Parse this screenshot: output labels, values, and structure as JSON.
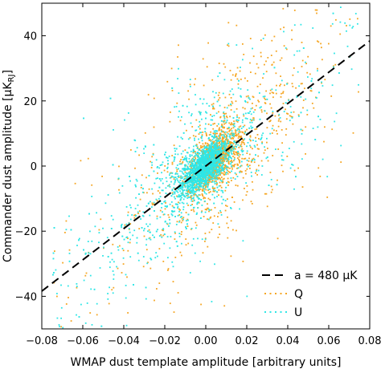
{
  "chart_data": {
    "type": "scatter",
    "xlabel": "WMAP dust template amplitude [arbitrary units]",
    "ylabel": "Commander dust amplitude [μK",
    "ylabel_sub": "RJ",
    "ylabel_close": "]",
    "xlim": [
      -0.08,
      0.08
    ],
    "ylim": [
      -50,
      50
    ],
    "x_ticks": [
      -0.08,
      -0.06,
      -0.04,
      -0.02,
      0,
      0.02,
      0.04,
      0.06,
      0.08
    ],
    "x_tick_labels": [
      "−0.08",
      "−0.06",
      "−0.04",
      "−0.02",
      "0.00",
      "0.02",
      "0.04",
      "0.06",
      "0.08"
    ],
    "y_ticks": [
      -40,
      -20,
      0,
      20,
      40
    ],
    "y_tick_labels": [
      "−40",
      "−20",
      "0",
      "20",
      "40"
    ],
    "grid": false,
    "legend_position": "bottom-right",
    "fit_line": {
      "label": "a = 480 μK",
      "slope": 480,
      "intercept": 0,
      "style": "dashed",
      "color": "#000000"
    },
    "series": [
      {
        "name": "Q",
        "color": "#f5a623",
        "slope": 480,
        "points": 1800,
        "noise_core": 4,
        "noise_wide": 12
      },
      {
        "name": "U",
        "color": "#2ee6e6",
        "slope": 480,
        "points": 2600,
        "noise_core": 3,
        "noise_wide": 10
      }
    ]
  }
}
